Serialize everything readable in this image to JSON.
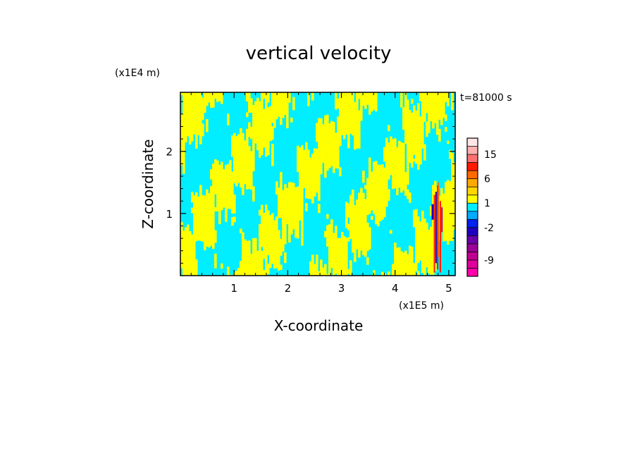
{
  "chart_data": {
    "type": "heatmap",
    "title": "vertical velocity",
    "xlabel": "X-coordinate",
    "ylabel": "Z-coordinate",
    "x_unit": "(x1E5 m)",
    "y_unit": "(x1E4 m)",
    "time_label": "t=81000 s",
    "xlim": [
      0,
      5.12
    ],
    "ylim": [
      0,
      2.95
    ],
    "x_ticks": [
      1,
      2,
      3,
      4,
      5
    ],
    "y_ticks": [
      1,
      2
    ],
    "colorbar": {
      "levels": [
        -13,
        -11,
        -9,
        -7,
        -5,
        -3,
        -2,
        -1,
        0,
        1,
        2,
        3,
        6,
        9,
        12,
        15,
        18,
        25
      ],
      "colors": [
        "#ff00aa",
        "#e0009a",
        "#c00090",
        "#9a0098",
        "#6a00a8",
        "#2000c0",
        "#0022ee",
        "#00aaff",
        "#00eeff",
        "#ffff00",
        "#ffd700",
        "#ffaa00",
        "#ff6a00",
        "#ff1a00",
        "#ff7070",
        "#ffb0b0",
        "#ffe6e6"
      ],
      "tick_labels": [
        15,
        6,
        1,
        -2,
        -9
      ],
      "tick_values": [
        15,
        6,
        1,
        -2,
        -9
      ]
    },
    "field_description_colors": {
      "updraft": "#ffff00",
      "downdraft": "#00eeff",
      "strong": "#ff1a00",
      "negative_strong": "#2000c0"
    },
    "grid": false,
    "legend": "colorbar-right"
  }
}
